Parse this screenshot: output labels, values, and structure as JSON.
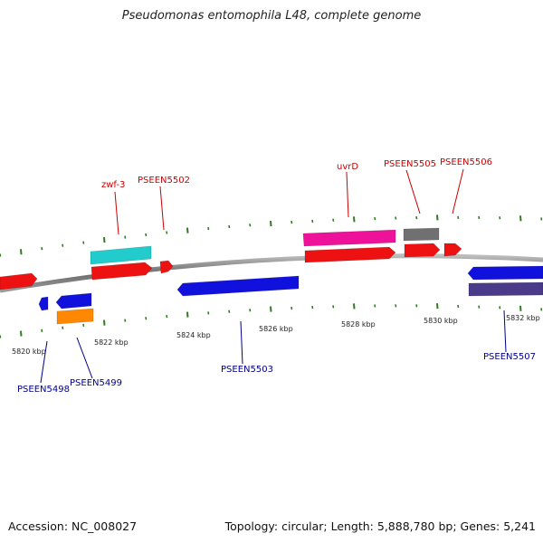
{
  "title": "Pseudomonas entomophila L48, complete genome",
  "footer": {
    "accession": "Accession: NC_008027",
    "summary": "Topology: circular; Length: 5,888,780 bp; Genes: 5,241"
  },
  "colors": {
    "backbone": "#8a8a8a",
    "tick": "#2e7d1f",
    "label_forward": "#cc0000",
    "label_reverse": "#00008b"
  },
  "position_labels": [
    "5820 kbp",
    "5822 kbp",
    "5824 kbp",
    "5826 kbp",
    "5828 kbp",
    "5830 kbp",
    "5832 kbp"
  ],
  "genes": [
    {
      "id": "g-left-red",
      "strand": "+",
      "color": "#ee1111"
    },
    {
      "id": "g-zwf3",
      "strand": "+",
      "color": "#ee1111",
      "label": ""
    },
    {
      "id": "g-zwf3-rna",
      "strand": "+",
      "color": "#22cccc"
    },
    {
      "id": "g-5502",
      "strand": "+",
      "color": "#ee1111"
    },
    {
      "id": "g-5498",
      "strand": "-",
      "color": "#1111dd"
    },
    {
      "id": "g-5499",
      "strand": "-",
      "color": "#1111dd"
    },
    {
      "id": "g-5499-orange",
      "strand": "-",
      "color": "#ff8800"
    },
    {
      "id": "g-5503",
      "strand": "-",
      "color": "#1111dd"
    },
    {
      "id": "g-uvrd-pink",
      "strand": "+",
      "color": "#ee1199"
    },
    {
      "id": "g-uvrd",
      "strand": "+",
      "color": "#ee1111"
    },
    {
      "id": "g-5505-grey",
      "strand": "+",
      "color": "#707070"
    },
    {
      "id": "g-5505",
      "strand": "+",
      "color": "#ee1111"
    },
    {
      "id": "g-5506",
      "strand": "+",
      "color": "#ee1111"
    },
    {
      "id": "g-5507",
      "strand": "-",
      "color": "#1111dd"
    },
    {
      "id": "g-5507-purple",
      "strand": "-",
      "color": "#4a3a8a"
    }
  ],
  "gene_labels": {
    "forward": [
      "zwf-3",
      "PSEEN5502",
      "uvrD",
      "PSEEN5505",
      "PSEEN5506"
    ],
    "reverse": [
      "PSEEN5498",
      "PSEEN5499",
      "PSEEN5503",
      "PSEEN5507"
    ]
  }
}
